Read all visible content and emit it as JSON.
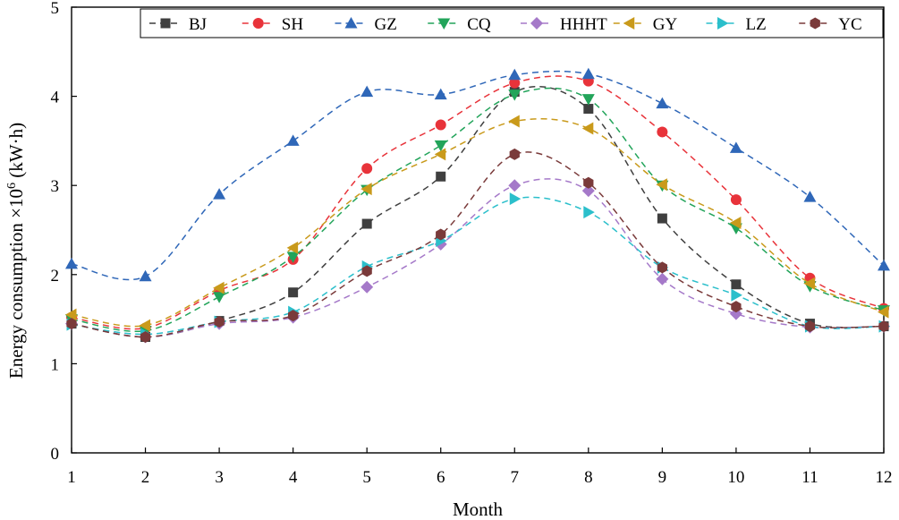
{
  "chart_data": {
    "type": "line",
    "title": "",
    "xlabel": "Month",
    "ylabel": "Energy consumption ×10",
    "ylabel_exponent": "6",
    "ylabel_unit": " (kW·h)",
    "xlim": [
      1,
      12
    ],
    "ylim": [
      0,
      5
    ],
    "x": [
      1,
      2,
      3,
      4,
      5,
      6,
      7,
      8,
      9,
      10,
      11,
      12
    ],
    "xticks": [
      "1",
      "2",
      "3",
      "4",
      "5",
      "6",
      "7",
      "8",
      "9",
      "10",
      "11",
      "12"
    ],
    "yticks": [
      "0",
      "1",
      "2",
      "3",
      "4",
      "5"
    ],
    "grid": false,
    "legend_position": "top",
    "series": [
      {
        "name": "BJ",
        "color": "#3f3f3f",
        "marker": "square",
        "values": [
          1.45,
          1.3,
          1.48,
          1.8,
          2.57,
          3.1,
          4.05,
          3.86,
          2.63,
          1.89,
          1.45,
          1.42
        ]
      },
      {
        "name": "SH",
        "color": "#e8333a",
        "marker": "circle",
        "values": [
          1.52,
          1.4,
          1.82,
          2.17,
          3.19,
          3.68,
          4.15,
          4.17,
          3.6,
          2.84,
          1.96,
          1.62
        ]
      },
      {
        "name": "GZ",
        "color": "#2f67b8",
        "marker": "triangle-up",
        "values": [
          2.12,
          1.98,
          2.9,
          3.5,
          4.05,
          4.02,
          4.24,
          4.25,
          3.92,
          3.42,
          2.87,
          2.1
        ]
      },
      {
        "name": "CQ",
        "color": "#22a45a",
        "marker": "triangle-down",
        "values": [
          1.5,
          1.37,
          1.75,
          2.2,
          2.95,
          3.45,
          4.02,
          3.97,
          3.0,
          2.52,
          1.87,
          1.6
        ]
      },
      {
        "name": "HHHT",
        "color": "#a579c9",
        "marker": "diamond",
        "values": [
          1.45,
          1.3,
          1.45,
          1.52,
          1.86,
          2.34,
          3.0,
          2.94,
          1.95,
          1.56,
          1.41,
          1.42
        ]
      },
      {
        "name": "GY",
        "color": "#c99a1b",
        "marker": "triangle-left",
        "values": [
          1.55,
          1.43,
          1.85,
          2.3,
          2.96,
          3.35,
          3.72,
          3.64,
          3.01,
          2.58,
          1.9,
          1.58
        ]
      },
      {
        "name": "LZ",
        "color": "#2bbfcb",
        "marker": "triangle-right",
        "values": [
          1.44,
          1.33,
          1.47,
          1.58,
          2.09,
          2.38,
          2.85,
          2.7,
          2.08,
          1.77,
          1.42,
          1.42
        ]
      },
      {
        "name": "YC",
        "color": "#7a3a3a",
        "marker": "hexagon",
        "values": [
          1.45,
          1.3,
          1.47,
          1.54,
          2.04,
          2.45,
          3.35,
          3.03,
          2.08,
          1.64,
          1.42,
          1.42
        ]
      }
    ]
  }
}
